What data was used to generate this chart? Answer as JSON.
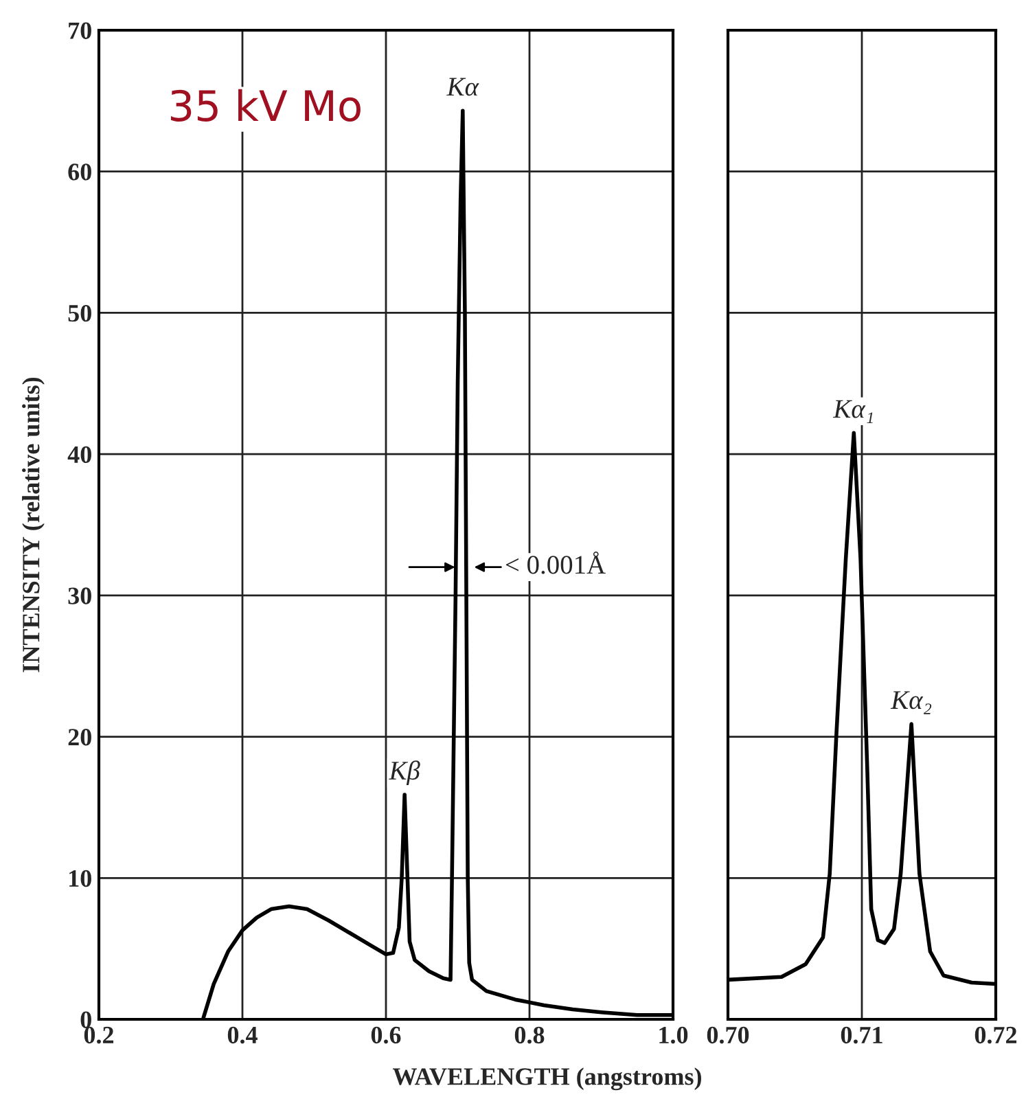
{
  "chart_data": [
    {
      "type": "line",
      "xlabel": "WAVELENGTH (angstroms)",
      "ylabel": "INTENSITY (relative units)",
      "x": [
        0.345,
        0.36,
        0.38,
        0.4,
        0.42,
        0.44,
        0.465,
        0.49,
        0.52,
        0.55,
        0.58,
        0.6,
        0.61,
        0.618,
        0.622,
        0.626,
        0.63,
        0.633,
        0.64,
        0.66,
        0.68,
        0.69,
        0.692,
        0.697,
        0.7,
        0.704,
        0.707,
        0.71,
        0.712,
        0.714,
        0.716,
        0.72,
        0.74,
        0.78,
        0.82,
        0.86,
        0.9,
        0.95,
        1.0
      ],
      "series": [
        {
          "color": "#000000",
          "values": [
            0,
            2.5,
            4.8,
            6.3,
            7.2,
            7.8,
            8.0,
            7.8,
            7.0,
            6.1,
            5.2,
            4.6,
            4.7,
            6.5,
            10,
            15.9,
            10,
            5.5,
            4.2,
            3.4,
            2.9,
            2.8,
            10,
            30,
            45,
            58,
            64.3,
            50,
            30,
            10,
            4,
            2.8,
            2.0,
            1.4,
            1.0,
            0.7,
            0.5,
            0.3,
            0.3
          ]
        }
      ],
      "xlim": [
        0.2,
        1.0
      ],
      "xticks": [
        {
          "value": 0.2,
          "label": "0.2"
        },
        {
          "value": 0.4,
          "label": "0.4"
        },
        {
          "value": 0.6,
          "label": "0.6"
        },
        {
          "value": 0.8,
          "label": "0.8"
        },
        {
          "value": 1.0,
          "label": "1.0"
        }
      ],
      "ylim": [
        0,
        70
      ],
      "yticks": [
        0,
        10,
        20,
        30,
        40,
        50,
        60,
        70
      ],
      "grid": true,
      "annotations": [
        "35 kV Mo",
        {
          "text": "Kα",
          "x": 0.707,
          "y": 64.3
        },
        {
          "text": "Kβ",
          "x": 0.626,
          "y": 15.9
        },
        {
          "text": "< 0.001Å",
          "x": 0.707,
          "y": 32
        }
      ]
    },
    {
      "type": "line",
      "x": [
        0.7,
        0.704,
        0.7058,
        0.7071,
        0.7076,
        0.7081,
        0.7088,
        0.7094,
        0.7099,
        0.7104,
        0.7107,
        0.7112,
        0.7117,
        0.7124,
        0.7129,
        0.7137,
        0.7143,
        0.7151,
        0.7161,
        0.7182,
        0.72
      ],
      "series": [
        {
          "color": "#000000",
          "values": [
            2.8,
            3.0,
            3.9,
            5.8,
            10.3,
            20.2,
            32.6,
            41.5,
            32.6,
            17.8,
            7.8,
            5.6,
            5.4,
            6.4,
            10.3,
            20.9,
            10.3,
            4.8,
            3.1,
            2.6,
            2.5
          ]
        }
      ],
      "xlim": [
        0.7,
        0.72
      ],
      "xticks": [
        {
          "value": 0.7,
          "label": "0.70"
        },
        {
          "value": 0.71,
          "label": "0.71"
        },
        {
          "value": 0.72,
          "label": "0.72"
        }
      ],
      "ylim": [
        0,
        70
      ],
      "yticks": [
        0,
        10,
        20,
        30,
        40,
        50,
        60,
        70
      ],
      "grid": true,
      "tick_labels": "x",
      "annotations": [
        {
          "text": "Kα₁",
          "x": 0.7094,
          "y": 41.5
        },
        {
          "text": "Kα₂",
          "x": 0.7137,
          "y": 20.9
        }
      ]
    }
  ]
}
